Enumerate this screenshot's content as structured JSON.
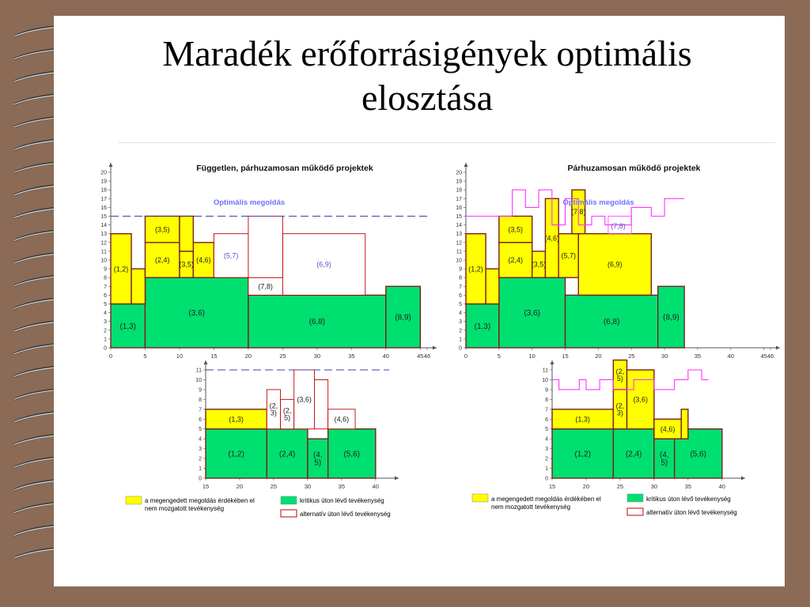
{
  "slide": {
    "title_line1": "Maradék erőforrásigények optimális",
    "title_line2": "elosztása"
  },
  "colors": {
    "yellow": "#ffff00",
    "green": "#00e070",
    "red_outline": "#c00000",
    "magenta": "#ff33ff",
    "dash_blue": "#3344aa",
    "optimal_text": "#7070ff",
    "background": "#8b6a56"
  },
  "chart_data": [
    {
      "panel": "left-top",
      "type": "bar",
      "title": "Független, párhuzamosan működő projektek",
      "annotation": "Optimális megoldás",
      "optimal_level": 15,
      "xlim": [
        0,
        46
      ],
      "ylim": [
        0,
        20
      ],
      "xticks": [
        "0",
        "5",
        "10",
        "15",
        "20",
        "25",
        "30",
        "35",
        "40",
        "45",
        "46"
      ],
      "xtick_values": [
        0,
        5,
        10,
        15,
        20,
        25,
        30,
        35,
        40,
        45,
        46
      ],
      "blocks": [
        {
          "label": "(1,3)",
          "x0": 0,
          "x1": 5,
          "y0": 0,
          "y1": 5,
          "kind": "critical"
        },
        {
          "label": "(3,6)",
          "x0": 5,
          "x1": 20,
          "y0": 0,
          "y1": 8,
          "kind": "critical"
        },
        {
          "label": "(6,8)",
          "x0": 20,
          "x1": 40,
          "y0": 0,
          "y1": 6,
          "kind": "critical"
        },
        {
          "label": "(8,9)",
          "x0": 40,
          "x1": 45,
          "y0": 0,
          "y1": 7,
          "kind": "critical"
        },
        {
          "label": "(1,2)",
          "x0": 0,
          "x1": 3,
          "y0": 5,
          "y1": 13,
          "kind": "fixed"
        },
        {
          "label": "",
          "x0": 3,
          "x1": 5,
          "y0": 5,
          "y1": 9,
          "kind": "fixed"
        },
        {
          "label": "(2,4)",
          "x0": 5,
          "x1": 10,
          "y0": 8,
          "y1": 12,
          "kind": "fixed"
        },
        {
          "label": "(3,5)",
          "x0": 5,
          "x1": 10,
          "y0": 12,
          "y1": 15,
          "kind": "fixed"
        },
        {
          "label": "(3,5)",
          "x0": 10,
          "x1": 12,
          "y0": 8,
          "y1": 11,
          "kind": "fixed"
        },
        {
          "label": "(4,6)",
          "x0": 12,
          "x1": 15,
          "y0": 8,
          "y1": 12,
          "kind": "fixed"
        },
        {
          "label": "",
          "x0": 10,
          "x1": 12,
          "y0": 11,
          "y1": 15,
          "kind": "fixed"
        },
        {
          "label": "(5,7)",
          "x0": 15,
          "x1": 20,
          "y0": 8,
          "y1": 13,
          "kind": "alt"
        },
        {
          "label": "(7,8)",
          "x0": 20,
          "x1": 25,
          "y0": 6,
          "y1": 8,
          "kind": "alt"
        },
        {
          "label": "(6,9)",
          "x0": 25,
          "x1": 37,
          "y0": 6,
          "y1": 13,
          "kind": "alt"
        },
        {
          "label": "",
          "x0": 20,
          "x1": 25,
          "y0": 8,
          "y1": 15,
          "kind": "alt"
        }
      ]
    },
    {
      "panel": "right-top",
      "type": "bar",
      "title": "Párhuzamosan működő projektek",
      "annotation": "Optimális megoldás",
      "xlim": [
        0,
        46
      ],
      "ylim": [
        0,
        20
      ],
      "xticks": [
        "0",
        "5",
        "10",
        "15",
        "20",
        "25",
        "30",
        "35",
        "40",
        "45",
        "46"
      ],
      "xtick_values": [
        0,
        5,
        10,
        15,
        20,
        25,
        30,
        35,
        40,
        45,
        46
      ],
      "blocks": [
        {
          "label": "(1,3)",
          "x0": 0,
          "x1": 5,
          "y0": 0,
          "y1": 5,
          "kind": "critical"
        },
        {
          "label": "(3,6)",
          "x0": 5,
          "x1": 15,
          "y0": 0,
          "y1": 8,
          "kind": "critical"
        },
        {
          "label": "(6,8)",
          "x0": 15,
          "x1": 29,
          "y0": 0,
          "y1": 6,
          "kind": "critical"
        },
        {
          "label": "(8,9)",
          "x0": 29,
          "x1": 33,
          "y0": 0,
          "y1": 7,
          "kind": "critical"
        },
        {
          "label": "(1,2)",
          "x0": 0,
          "x1": 3,
          "y0": 5,
          "y1": 13,
          "kind": "fixed"
        },
        {
          "label": "",
          "x0": 3,
          "x1": 5,
          "y0": 5,
          "y1": 9,
          "kind": "fixed"
        },
        {
          "label": "(3,5)",
          "x0": 5,
          "x1": 10,
          "y0": 12,
          "y1": 15,
          "kind": "fixed"
        },
        {
          "label": "(2,4)",
          "x0": 5,
          "x1": 10,
          "y0": 8,
          "y1": 12,
          "kind": "fixed"
        },
        {
          "label": "(3,5)",
          "x0": 10,
          "x1": 12,
          "y0": 8,
          "y1": 11,
          "kind": "fixed"
        },
        {
          "label": "(4,6)",
          "x0": 12,
          "x1": 14,
          "y0": 8,
          "y1": 17,
          "kind": "fixed"
        },
        {
          "label": "(5,7)",
          "x0": 14,
          "x1": 17,
          "y0": 8,
          "y1": 13,
          "kind": "fixed"
        },
        {
          "label": "(7,8)",
          "x0": 16,
          "x1": 18,
          "y0": 13,
          "y1": 18,
          "kind": "fixed"
        },
        {
          "label": "(6,9)",
          "x0": 17,
          "x1": 28,
          "y0": 6,
          "y1": 13,
          "kind": "fixed"
        }
      ],
      "alt_label": "(7,8)",
      "profile_x": [
        0,
        7,
        7,
        9,
        9,
        11,
        11,
        13,
        13,
        15,
        15,
        17,
        17,
        19,
        19,
        21,
        21,
        25,
        25,
        28,
        28,
        30,
        30,
        33
      ],
      "profile_y": [
        15,
        15,
        18,
        18,
        16,
        16,
        18,
        18,
        14,
        14,
        17,
        17,
        14,
        14,
        15,
        15,
        14,
        14,
        16,
        16,
        15,
        15,
        17,
        17
      ]
    },
    {
      "panel": "left-bottom",
      "type": "bar",
      "xlim": [
        15,
        42
      ],
      "ylim": [
        0,
        11
      ],
      "optimal_level": 11,
      "xticks": [
        "15",
        "20",
        "25",
        "30",
        "35",
        "40"
      ],
      "xtick_values": [
        15,
        20,
        25,
        30,
        35,
        40
      ],
      "blocks": [
        {
          "label": "(1,2)",
          "x0": 15,
          "x1": 24,
          "y0": 0,
          "y1": 5,
          "kind": "critical"
        },
        {
          "label": "(2,4)",
          "x0": 24,
          "x1": 30,
          "y0": 0,
          "y1": 5,
          "kind": "critical"
        },
        {
          "label": "(4,\n5)",
          "x0": 30,
          "x1": 33,
          "y0": 0,
          "y1": 4,
          "kind": "critical"
        },
        {
          "label": "(5,6)",
          "x0": 33,
          "x1": 40,
          "y0": 0,
          "y1": 5,
          "kind": "critical"
        },
        {
          "label": "(1,3)",
          "x0": 15,
          "x1": 24,
          "y0": 5,
          "y1": 7,
          "kind": "fixed"
        },
        {
          "label": "(2,\n3)",
          "x0": 24,
          "x1": 26,
          "y0": 5,
          "y1": 9,
          "kind": "alt"
        },
        {
          "label": "(2,\n5)",
          "x0": 26,
          "x1": 28,
          "y0": 5,
          "y1": 8,
          "kind": "alt"
        },
        {
          "label": "(3,6)",
          "x0": 28,
          "x1": 31,
          "y0": 5,
          "y1": 11,
          "kind": "alt"
        },
        {
          "label": "",
          "x0": 31,
          "x1": 33,
          "y0": 5,
          "y1": 10,
          "kind": "alt"
        },
        {
          "label": "(4,6)",
          "x0": 33,
          "x1": 37,
          "y0": 5,
          "y1": 7,
          "kind": "alt"
        }
      ]
    },
    {
      "panel": "right-bottom",
      "type": "bar",
      "xlim": [
        15,
        42
      ],
      "ylim": [
        0,
        11
      ],
      "xticks": [
        "15",
        "20",
        "25",
        "30",
        "35",
        "40"
      ],
      "xtick_values": [
        15,
        20,
        25,
        30,
        35,
        40
      ],
      "blocks": [
        {
          "label": "(1,2)",
          "x0": 15,
          "x1": 24,
          "y0": 0,
          "y1": 5,
          "kind": "critical"
        },
        {
          "label": "(2,4)",
          "x0": 24,
          "x1": 30,
          "y0": 0,
          "y1": 5,
          "kind": "critical"
        },
        {
          "label": "(4,\n5)",
          "x0": 30,
          "x1": 33,
          "y0": 0,
          "y1": 4,
          "kind": "critical"
        },
        {
          "label": "(5,6)",
          "x0": 33,
          "x1": 40,
          "y0": 0,
          "y1": 5,
          "kind": "critical"
        },
        {
          "label": "(1,3)",
          "x0": 15,
          "x1": 24,
          "y0": 5,
          "y1": 7,
          "kind": "fixed"
        },
        {
          "label": "(2,\n5)",
          "x0": 24,
          "x1": 26,
          "y0": 9,
          "y1": 12,
          "kind": "fixed"
        },
        {
          "label": "(2,\n3)",
          "x0": 24,
          "x1": 26,
          "y0": 5,
          "y1": 9,
          "kind": "fixed"
        },
        {
          "label": "(3,6)",
          "x0": 26,
          "x1": 30,
          "y0": 5,
          "y1": 11,
          "kind": "fixed"
        },
        {
          "label": "(4,6)",
          "x0": 30,
          "x1": 34,
          "y0": 4,
          "y1": 6,
          "kind": "fixed"
        },
        {
          "label": "",
          "x0": 34,
          "x1": 35,
          "y0": 4,
          "y1": 7,
          "kind": "fixed"
        }
      ],
      "profile_x": [
        15,
        16,
        16,
        19,
        19,
        20,
        20,
        22,
        22,
        24,
        24,
        27,
        27,
        30,
        30,
        33,
        33,
        35,
        35,
        37,
        37,
        38
      ],
      "profile_y": [
        10,
        10,
        9,
        9,
        10,
        10,
        9,
        9,
        10,
        10,
        9,
        9,
        10,
        10,
        9,
        9,
        10,
        10,
        11,
        11,
        10,
        10
      ]
    }
  ],
  "legend": {
    "yellow_text1": "a megengedett megoldás érdékében el",
    "yellow_text2": "nem mozgatott tevékenység",
    "green_text": "kritikus úton lévő tevékenység",
    "alt_text": "alternatív úton lévő tevékenység"
  }
}
